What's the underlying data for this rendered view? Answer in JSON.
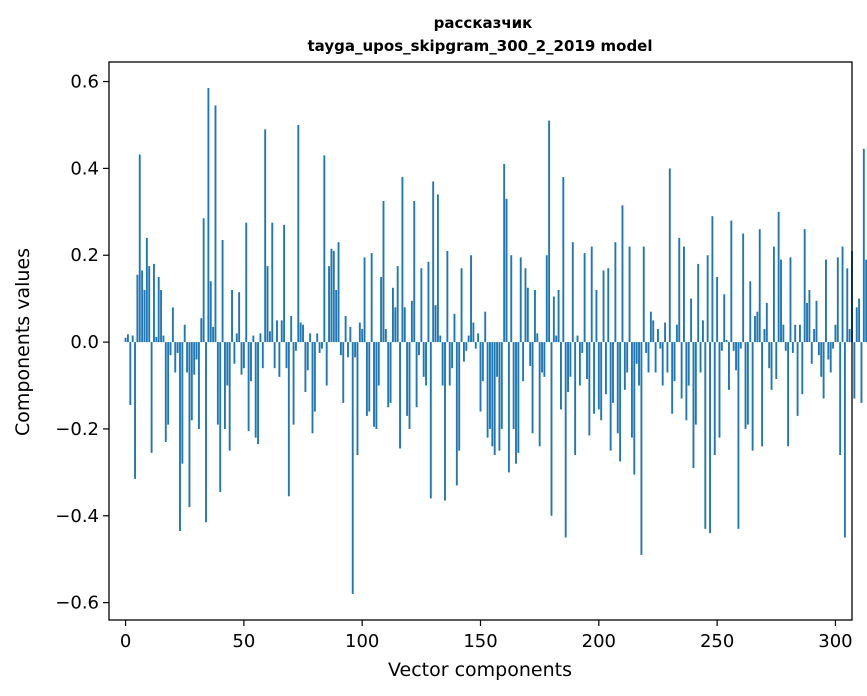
{
  "chart_data": {
    "type": "bar",
    "title": "рассказчик",
    "subtitle": "tayga_upos_skipgram_300_2_2019 model",
    "xlabel": "Vector components",
    "ylabel": "Components values",
    "xlim": [
      -7,
      307
    ],
    "ylim": [
      -0.64,
      0.645
    ],
    "xticks": [
      0,
      50,
      100,
      150,
      200,
      250,
      300
    ],
    "yticks": [
      -0.6,
      -0.4,
      -0.2,
      0.0,
      0.2,
      0.4,
      0.6
    ],
    "ytick_labels": [
      "−0.6",
      "−0.4",
      "−0.2",
      "0.0",
      "0.2",
      "0.4",
      "0.6"
    ],
    "bar_color": "#1f77b4",
    "grid": false,
    "values": [
      0.01,
      0.018,
      -0.145,
      0.015,
      -0.315,
      0.155,
      0.432,
      0.165,
      0.12,
      0.24,
      0.175,
      -0.255,
      0.18,
      0.012,
      0.15,
      0.12,
      0.015,
      -0.23,
      -0.19,
      -0.03,
      0.08,
      -0.07,
      -0.025,
      -0.435,
      -0.28,
      0.04,
      -0.07,
      -0.38,
      -0.18,
      -0.075,
      -0.04,
      -0.2,
      0.055,
      0.285,
      -0.415,
      0.585,
      0.14,
      0.035,
      0.545,
      -0.19,
      -0.345,
      0.235,
      -0.2,
      -0.1,
      -0.25,
      0.12,
      -0.05,
      0.02,
      0.115,
      -0.075,
      -0.06,
      0.275,
      -0.205,
      -0.09,
      0.015,
      -0.22,
      -0.235,
      0.02,
      -0.06,
      0.49,
      0.175,
      0.025,
      0.275,
      -0.06,
      0.05,
      -0.08,
      0.05,
      0.27,
      -0.06,
      -0.355,
      0.06,
      -0.19,
      -0.02,
      0.5,
      0.045,
      0.04,
      -0.115,
      -0.065,
      0.02,
      -0.21,
      -0.16,
      0.02,
      -0.025,
      -0.015,
      0.43,
      -0.1,
      0.175,
      0.215,
      0.21,
      0.12,
      0.23,
      -0.03,
      -0.14,
      0.06,
      -0.035,
      0.035,
      -0.58,
      -0.035,
      -0.26,
      0.045,
      0.03,
      0.195,
      -0.17,
      -0.16,
      0.205,
      -0.195,
      -0.2,
      -0.1,
      0.15,
      0.325,
      0.03,
      -0.15,
      -0.14,
      0.125,
      0.08,
      0.175,
      -0.245,
      0.38,
      0.08,
      -0.17,
      -0.2,
      0.095,
      0.325,
      -0.15,
      -0.03,
      0.17,
      -0.08,
      -0.1,
      0.185,
      -0.36,
      0.37,
      0.085,
      0.34,
      0.015,
      -0.1,
      -0.365,
      0.21,
      -0.1,
      -0.06,
      0.065,
      -0.33,
      -0.25,
      0.17,
      -0.045,
      -0.02,
      0.015,
      0.2,
      0.045,
      -0.015,
      0.02,
      -0.16,
      -0.09,
      0.07,
      -0.22,
      -0.2,
      -0.24,
      -0.26,
      -0.08,
      -0.25,
      -0.2,
      0.41,
      0.33,
      -0.3,
      0.2,
      -0.2,
      -0.28,
      -0.255,
      0.195,
      -0.09,
      0.17,
      0.125,
      -0.055,
      -0.21,
      0.12,
      0.02,
      -0.24,
      -0.07,
      -0.08,
      0.2,
      0.51,
      -0.4,
      0.105,
      0.015,
      0.12,
      -0.155,
      0.38,
      -0.45,
      -0.115,
      -0.08,
      0.23,
      -0.26,
      0.015,
      -0.1,
      -0.025,
      0.205,
      -0.085,
      -0.215,
      0.22,
      -0.165,
      0.12,
      -0.155,
      -0.18,
      0.165,
      -0.12,
      0.17,
      -0.25,
      -0.14,
      0.23,
      -0.21,
      -0.275,
      0.315,
      -0.11,
      -0.07,
      0.22,
      -0.22,
      -0.305,
      -0.05,
      -0.1,
      -0.49,
      0.22,
      -0.025,
      -0.07,
      0.07,
      0.05,
      -0.07,
      0.03,
      -0.015,
      -0.1,
      0.045,
      -0.07,
      0.4,
      -0.165,
      -0.09,
      0.04,
      0.24,
      -0.13,
      0.22,
      -0.18,
      -0.1,
      0.1,
      -0.29,
      -0.19,
      0.18,
      -0.07,
      0.05,
      -0.43,
      0.2,
      -0.44,
      0.29,
      -0.26,
      0.15,
      -0.22,
      -0.02,
      0.11,
      0.005,
      -0.11,
      0.28,
      -0.02,
      -0.065,
      -0.43,
      -0.015,
      0.25,
      -0.2,
      -0.19,
      0.14,
      -0.25,
      0.06,
      0.07,
      0.26,
      -0.24,
      0.03,
      0.09,
      -0.06,
      -0.11,
      0.22,
      -0.085,
      0.3,
      0.19,
      0.04,
      -0.02,
      -0.24,
      0.195,
      -0.025,
      0.04,
      -0.17,
      0.04,
      -0.12,
      0.26,
      0.09,
      0.12,
      -0.05,
      0.03,
      0.095,
      -0.03,
      -0.08,
      -0.13,
      0.19,
      -0.04,
      -0.07,
      -0.015,
      0.04,
      0.195,
      -0.26,
      0.22,
      -0.45,
      0.17,
      0.03,
      0.21,
      -0.13,
      0.08,
      0.1,
      -0.14,
      0.445,
      0.19
    ]
  }
}
